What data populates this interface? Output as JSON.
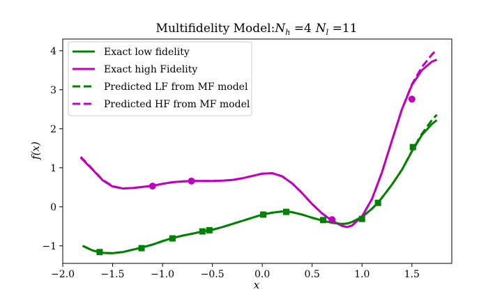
{
  "chart_data": {
    "type": "line",
    "title": "Multifidelity Model:N_h =4 N_l =11",
    "title_parts": {
      "prefix": "Multifidelity Model:",
      "nh_var": "N",
      "nh_sub": "h",
      "nh_val": " =4",
      "nl_var": "N",
      "nl_sub": "l",
      "nl_val": " =11"
    },
    "xlabel": "x",
    "ylabel": "f(x)",
    "xlim": [
      -2.0,
      1.9
    ],
    "ylim": [
      -1.45,
      4.3
    ],
    "xticks": [
      -2.0,
      -1.5,
      -1.0,
      -0.5,
      0.0,
      0.5,
      1.0,
      1.5
    ],
    "xtick_labels": [
      "−2.0",
      "−1.5",
      "−1.0",
      "−0.5",
      "0.0",
      "0.5",
      "1.0",
      "1.5"
    ],
    "yticks": [
      -1,
      0,
      1,
      2,
      3,
      4
    ],
    "ytick_labels": [
      "−1",
      "0",
      "1",
      "2",
      "3",
      "4"
    ],
    "grid": false,
    "legend_position": "top-left",
    "colors": {
      "low": "#008000",
      "high": "#bf00bf"
    },
    "series": [
      {
        "name": "Exact low fidelity",
        "color": "#008000",
        "style": "solid",
        "x": [
          -1.8,
          -1.7,
          -1.6,
          -1.5,
          -1.4,
          -1.3,
          -1.2,
          -1.1,
          -1.0,
          -0.9,
          -0.8,
          -0.7,
          -0.6,
          -0.5,
          -0.4,
          -0.3,
          -0.2,
          -0.1,
          0.0,
          0.1,
          0.2,
          0.25,
          0.3,
          0.4,
          0.5,
          0.6,
          0.7,
          0.8,
          0.85,
          0.9,
          1.0,
          1.1,
          1.15,
          1.2,
          1.3,
          1.4,
          1.5,
          1.6,
          1.7,
          1.75
        ],
        "y": [
          -1.0,
          -1.12,
          -1.18,
          -1.19,
          -1.16,
          -1.1,
          -1.04,
          -0.97,
          -0.88,
          -0.8,
          -0.74,
          -0.69,
          -0.63,
          -0.59,
          -0.52,
          -0.44,
          -0.36,
          -0.28,
          -0.2,
          -0.15,
          -0.12,
          -0.12,
          -0.14,
          -0.2,
          -0.28,
          -0.35,
          -0.41,
          -0.44,
          -0.43,
          -0.39,
          -0.26,
          -0.05,
          0.08,
          0.23,
          0.57,
          0.95,
          1.42,
          1.84,
          2.12,
          2.22
        ]
      },
      {
        "name": "Exact high Fidelity",
        "color": "#bf00bf",
        "style": "solid",
        "x": [
          -1.82,
          -1.7,
          -1.6,
          -1.5,
          -1.4,
          -1.3,
          -1.2,
          -1.1,
          -1.0,
          -0.9,
          -0.8,
          -0.7,
          -0.6,
          -0.5,
          -0.4,
          -0.3,
          -0.2,
          -0.1,
          0.0,
          0.1,
          0.2,
          0.3,
          0.4,
          0.5,
          0.6,
          0.7,
          0.8,
          0.85,
          0.9,
          1.0,
          1.1,
          1.2,
          1.3,
          1.4,
          1.5,
          1.6,
          1.7,
          1.75
        ],
        "y": [
          1.26,
          0.95,
          0.68,
          0.52,
          0.47,
          0.48,
          0.51,
          0.54,
          0.59,
          0.63,
          0.65,
          0.66,
          0.66,
          0.66,
          0.67,
          0.69,
          0.73,
          0.79,
          0.85,
          0.86,
          0.78,
          0.6,
          0.35,
          0.07,
          -0.17,
          -0.36,
          -0.49,
          -0.52,
          -0.48,
          -0.25,
          0.2,
          0.88,
          1.7,
          2.5,
          3.12,
          3.5,
          3.72,
          3.77
        ]
      },
      {
        "name": "Predicted LF from MF model",
        "color": "#008000",
        "style": "dashed",
        "x": [
          -1.8,
          -1.7,
          -1.6,
          -1.5,
          -1.4,
          -1.3,
          -1.2,
          -1.1,
          -1.0,
          -0.9,
          -0.8,
          -0.7,
          -0.6,
          -0.5,
          -0.4,
          -0.3,
          -0.2,
          -0.1,
          0.0,
          0.1,
          0.2,
          0.25,
          0.3,
          0.4,
          0.5,
          0.6,
          0.7,
          0.8,
          0.85,
          0.9,
          1.0,
          1.1,
          1.15,
          1.2,
          1.3,
          1.4,
          1.5,
          1.6,
          1.7,
          1.75
        ],
        "y": [
          -1.0,
          -1.12,
          -1.18,
          -1.19,
          -1.16,
          -1.1,
          -1.04,
          -0.97,
          -0.88,
          -0.8,
          -0.74,
          -0.69,
          -0.63,
          -0.59,
          -0.52,
          -0.44,
          -0.36,
          -0.28,
          -0.2,
          -0.15,
          -0.12,
          -0.12,
          -0.14,
          -0.2,
          -0.28,
          -0.35,
          -0.41,
          -0.44,
          -0.43,
          -0.39,
          -0.26,
          -0.05,
          0.08,
          0.23,
          0.57,
          0.95,
          1.43,
          1.87,
          2.22,
          2.36
        ]
      },
      {
        "name": "Predicted HF from MF model",
        "color": "#bf00bf",
        "style": "dashed",
        "x": [
          -1.82,
          -1.7,
          -1.6,
          -1.5,
          -1.4,
          -1.3,
          -1.2,
          -1.1,
          -1.0,
          -0.9,
          -0.8,
          -0.7,
          -0.6,
          -0.5,
          -0.4,
          -0.3,
          -0.2,
          -0.1,
          0.0,
          0.1,
          0.2,
          0.3,
          0.4,
          0.5,
          0.6,
          0.7,
          0.8,
          0.85,
          0.9,
          1.0,
          1.1,
          1.2,
          1.3,
          1.4,
          1.5,
          1.6,
          1.7,
          1.75
        ],
        "y": [
          1.28,
          0.96,
          0.69,
          0.53,
          0.47,
          0.48,
          0.51,
          0.54,
          0.59,
          0.63,
          0.65,
          0.66,
          0.66,
          0.66,
          0.67,
          0.69,
          0.73,
          0.79,
          0.85,
          0.86,
          0.78,
          0.6,
          0.35,
          0.07,
          -0.17,
          -0.36,
          -0.49,
          -0.52,
          -0.48,
          -0.25,
          0.2,
          0.88,
          1.7,
          2.5,
          3.14,
          3.58,
          3.9,
          4.03
        ]
      }
    ],
    "low_fidelity_points": {
      "x": [
        -1.63,
        -1.21,
        -0.9,
        -0.6,
        -0.53,
        0.01,
        0.24,
        0.61,
        1.0,
        1.16,
        1.51
      ],
      "y": [
        -1.16,
        -1.06,
        -0.81,
        -0.63,
        -0.6,
        -0.2,
        -0.13,
        -0.34,
        -0.31,
        0.1,
        1.53
      ]
    },
    "high_fidelity_points": {
      "x": [
        -1.1,
        -0.71,
        0.7,
        1.5
      ],
      "y": [
        0.53,
        0.66,
        -0.33,
        2.76
      ]
    }
  }
}
